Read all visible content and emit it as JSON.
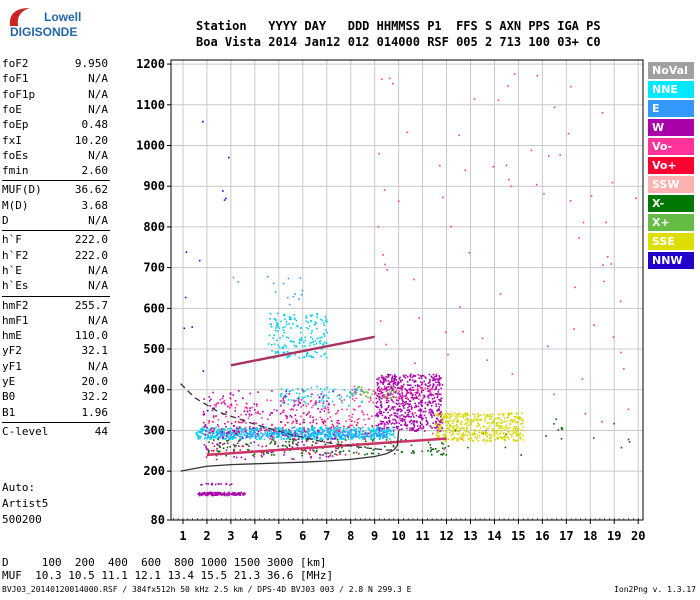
{
  "logo": {
    "line1": "Lowell",
    "line2": "DIGISONDE"
  },
  "header": {
    "labels": "Station   YYYY DAY   DDD HHMMSS P1  FFS S AXN PPS IGA PS",
    "values": "Boa Vista 2014 Jan12 012 014000 RSF 005 2 713 100 03+ C0"
  },
  "params": [
    {
      "label": "foF2",
      "value": "9.950"
    },
    {
      "label": "foF1",
      "value": "N/A"
    },
    {
      "label": "foF1p",
      "value": "N/A"
    },
    {
      "label": "foE",
      "value": "N/A"
    },
    {
      "label": "foEp",
      "value": "0.48"
    },
    {
      "label": "fxI",
      "value": "10.20"
    },
    {
      "label": "foEs",
      "value": "N/A"
    },
    {
      "label": "fmin",
      "value": "2.60"
    },
    {
      "label": "MUF(D)",
      "value": "36.62"
    },
    {
      "label": "M(D)",
      "value": "3.68"
    },
    {
      "label": "D",
      "value": "N/A"
    },
    {
      "label": "h`F",
      "value": "222.0"
    },
    {
      "label": "h`F2",
      "value": "222.0"
    },
    {
      "label": "h`E",
      "value": "N/A"
    },
    {
      "label": "h`Es",
      "value": "N/A"
    },
    {
      "label": "hmF2",
      "value": "255.7"
    },
    {
      "label": "hmF1",
      "value": "N/A"
    },
    {
      "label": "hmE",
      "value": "110.0"
    },
    {
      "label": "yF2",
      "value": "32.1"
    },
    {
      "label": "yF1",
      "value": "N/A"
    },
    {
      "label": "yE",
      "value": "20.0"
    },
    {
      "label": "B0",
      "value": "32.2"
    },
    {
      "label": "B1",
      "value": "1.96"
    },
    {
      "label": "C-level",
      "value": "44"
    }
  ],
  "auto": {
    "line1": "Auto:",
    "line2": "Artist5",
    "line3": "500200"
  },
  "legend": [
    {
      "label": "NoVal",
      "bg": "#a0a0a0",
      "fg": "#ffffff"
    },
    {
      "label": "NNE",
      "bg": "#00e8ff",
      "fg": "#ffffff"
    },
    {
      "label": "E",
      "bg": "#3399ff",
      "fg": "#ffffff"
    },
    {
      "label": "W",
      "bg": "#aa00aa",
      "fg": "#ffffff"
    },
    {
      "label": "Vo-",
      "bg": "#ff3399",
      "fg": "#ffffff"
    },
    {
      "label": "Vo+",
      "bg": "#ff0033",
      "fg": "#ffffff"
    },
    {
      "label": "SSW",
      "bg": "#ffb0b0",
      "fg": "#ffffff"
    },
    {
      "label": "X-",
      "bg": "#007700",
      "fg": "#ffffff"
    },
    {
      "label": "X+",
      "bg": "#66bb44",
      "fg": "#ffffff"
    },
    {
      "label": "SSE",
      "bg": "#dddd00",
      "fg": "#ffffff"
    },
    {
      "label": "NNW",
      "bg": "#2200cc",
      "fg": "#ffffff"
    }
  ],
  "footer": {
    "line1": "D     100  200  400  600  800 1000 1500 3000 [km]",
    "line2": "MUF  10.3 10.5 11.1 12.1 13.4 15.5 21.3 36.6 [MHz]",
    "line3": "BVJ03_20140120014000.RSF / 384fx512h 50 kHz 2.5 km / DPS-4D BVJ03 003 / 2.8 N 299.3 E",
    "version": "Ion2Png v. 1.3.17"
  },
  "chart_data": {
    "type": "scatter",
    "xlim": [
      0.5,
      20.2
    ],
    "ylim": [
      80,
      1210
    ],
    "x_ticks": [
      1,
      2,
      3,
      4,
      5,
      6,
      7,
      8,
      9,
      10,
      11,
      12,
      13,
      14,
      15,
      16,
      17,
      18,
      19,
      20
    ],
    "y_ticks": [
      80,
      200,
      300,
      400,
      500,
      600,
      700,
      800,
      900,
      1000,
      1100,
      1200
    ],
    "grid": true,
    "series": [
      {
        "name": "NNE",
        "color": "#00ccee",
        "clusters": [
          {
            "x": [
              1.5,
              9.8
            ],
            "y": [
              280,
              310
            ],
            "n": 700
          },
          {
            "x": [
              4.5,
              7.0
            ],
            "y": [
              480,
              590
            ],
            "n": 180
          },
          {
            "x": [
              5.0,
              8.5
            ],
            "y": [
              360,
              410
            ],
            "n": 90
          }
        ]
      },
      {
        "name": "E",
        "color": "#3399ff",
        "clusters": [
          {
            "x": [
              2.0,
              9.5
            ],
            "y": [
              285,
              300
            ],
            "n": 250
          },
          {
            "x": [
              3.0,
              6.0
            ],
            "y": [
              600,
              690
            ],
            "n": 15
          }
        ]
      },
      {
        "name": "W",
        "color": "#aa00aa",
        "clusters": [
          {
            "x": [
              9.0,
              11.8
            ],
            "y": [
              300,
              440
            ],
            "n": 650
          },
          {
            "x": [
              1.8,
              7.5
            ],
            "y": [
              230,
              400
            ],
            "n": 260
          },
          {
            "x": [
              1.6,
              3.6
            ],
            "y": [
              142,
              150
            ],
            "n": 120
          },
          {
            "x": [
              1.6,
              3.0
            ],
            "y": [
              168,
              172
            ],
            "n": 15
          }
        ]
      },
      {
        "name": "Vo-",
        "color": "#ff3399",
        "clusters": [
          {
            "x": [
              2.0,
              9.0
            ],
            "y": [
              300,
              380
            ],
            "n": 160
          },
          {
            "x": [
              8.0,
              11.5
            ],
            "y": [
              380,
              410
            ],
            "n": 60
          },
          {
            "x": [
              9.0,
              20.0
            ],
            "y": [
              250,
              1180
            ],
            "n": 80
          }
        ]
      },
      {
        "name": "Vo+",
        "color": "#ff0033",
        "clusters": [
          {
            "x": [
              2.0,
              9.0
            ],
            "y": [
              240,
              330
            ],
            "n": 70
          }
        ]
      },
      {
        "name": "X-",
        "color": "#006600",
        "clusters": [
          {
            "x": [
              2.0,
              12.0
            ],
            "y": [
              240,
              280
            ],
            "n": 160
          },
          {
            "x": [
              12.0,
              20.0
            ],
            "y": [
              240,
              330
            ],
            "n": 20
          }
        ]
      },
      {
        "name": "X+",
        "color": "#66bb44",
        "clusters": [
          {
            "x": [
              8.0,
              10.0
            ],
            "y": [
              380,
              410
            ],
            "n": 30
          }
        ]
      },
      {
        "name": "SSE",
        "color": "#d8d800",
        "clusters": [
          {
            "x": [
              11.5,
              15.2
            ],
            "y": [
              275,
              345
            ],
            "n": 450
          }
        ]
      },
      {
        "name": "NNW",
        "color": "#2200cc",
        "clusters": [
          {
            "x": [
              1.0,
              3.0
            ],
            "y": [
              300,
              1200
            ],
            "n": 12
          }
        ]
      }
    ],
    "traces": [
      {
        "name": "virtual-height-trace",
        "color": "#333333",
        "dashed": false,
        "x": [
          0.9,
          2.0,
          3.0,
          4.0,
          5.0,
          6.0,
          7.0,
          8.0,
          9.0,
          9.5,
          9.8,
          9.95,
          10.0
        ],
        "y": [
          200,
          212,
          216,
          218,
          220,
          222,
          225,
          229,
          236,
          243,
          252,
          263,
          300
        ]
      },
      {
        "name": "profile-trace",
        "color": "#333333",
        "dashed": true,
        "x": [
          0.9,
          1.5,
          2.5,
          4.0,
          5.5,
          7.0,
          8.5,
          9.5,
          10.0
        ],
        "y": [
          415,
          380,
          345,
          315,
          290,
          270,
          258,
          252,
          252
        ]
      }
    ],
    "oblique_lines": [
      {
        "color": "#aa3366",
        "x": [
          3.0,
          9.0
        ],
        "y": [
          460,
          530
        ]
      },
      {
        "color": "#cc3366",
        "x": [
          2.0,
          12.0
        ],
        "y": [
          240,
          280
        ]
      }
    ]
  }
}
